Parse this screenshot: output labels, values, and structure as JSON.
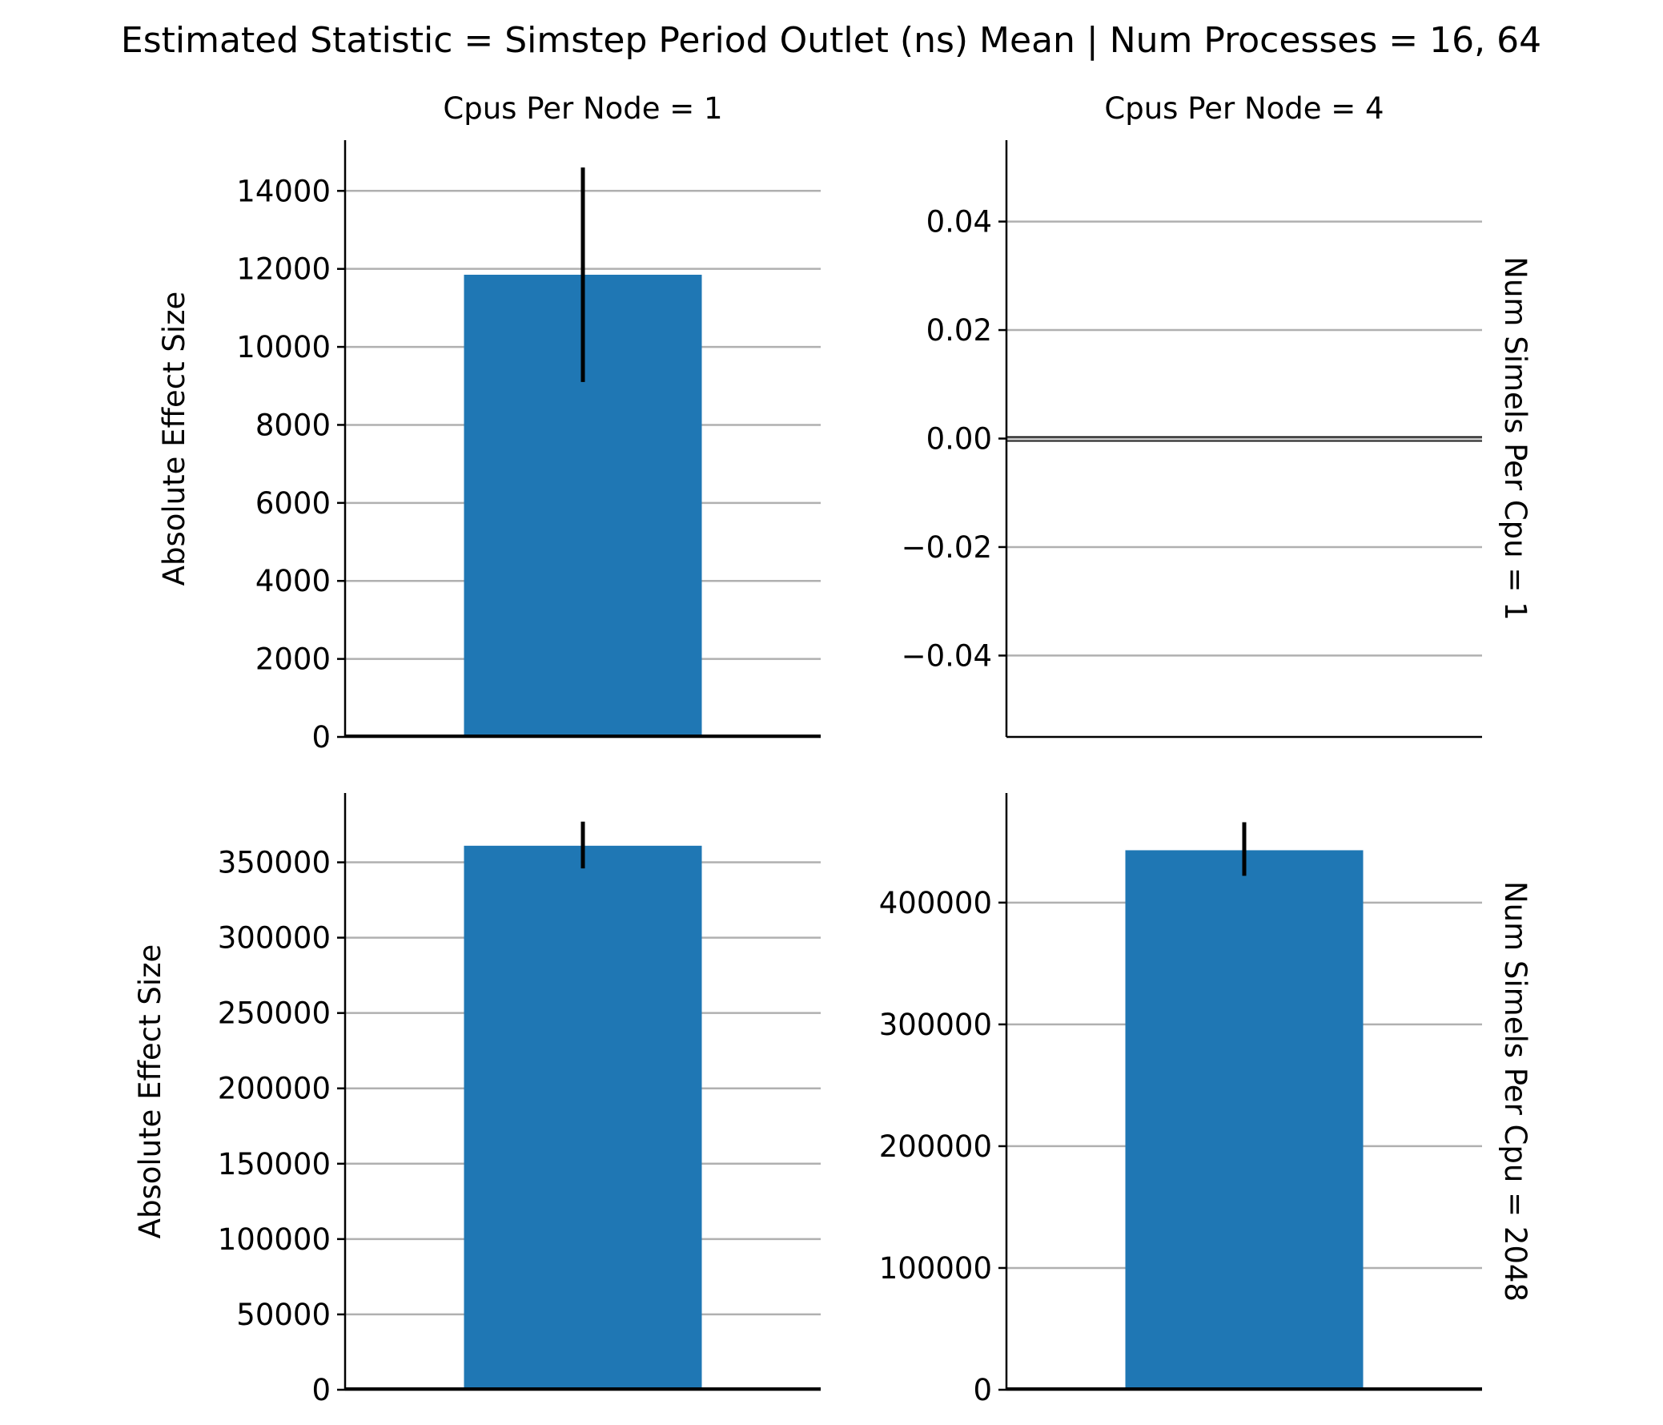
{
  "figure": {
    "suptitle": "Estimated Statistic = Simstep Period Outlet (ns) Mean | Num Processes = 16, 64",
    "col_titles": [
      "Cpus Per Node = 1",
      "Cpus Per Node = 4"
    ],
    "row_titles": [
      "Num Simels Per Cpu = 1",
      "Num Simels Per Cpu = 2048"
    ],
    "bar_color": "#1f77b4",
    "grid_color": "#b0b0b0",
    "errorbar_color": "#000000"
  },
  "chart_data": [
    {
      "type": "bar",
      "title": "Cpus Per Node = 1",
      "row_label": "",
      "ylabel": "Absolute Effect Size",
      "xlabel": "",
      "categories": [
        ""
      ],
      "values": [
        11850
      ],
      "error_low": [
        9100
      ],
      "error_high": [
        14600
      ],
      "ylim": [
        0,
        15300
      ],
      "yticks": [
        0,
        2000,
        4000,
        6000,
        8000,
        10000,
        12000,
        14000
      ],
      "ytick_labels": [
        "0",
        "2000",
        "4000",
        "6000",
        "8000",
        "10000",
        "12000",
        "14000"
      ],
      "grid": true
    },
    {
      "type": "bar",
      "title": "Cpus Per Node = 4",
      "row_label": "Num Simels Per Cpu = 1",
      "ylabel": "",
      "xlabel": "",
      "categories": [
        ""
      ],
      "values": [
        0
      ],
      "error_low": [
        0
      ],
      "error_high": [
        0
      ],
      "ylim": [
        -0.055,
        0.055
      ],
      "yticks": [
        -0.04,
        -0.02,
        0.0,
        0.02,
        0.04
      ],
      "ytick_labels": [
        "−0.04",
        "−0.02",
        "0.00",
        "0.02",
        "0.04"
      ],
      "grid": true
    },
    {
      "type": "bar",
      "title": "",
      "row_label": "",
      "ylabel": "Absolute Effect Size",
      "xlabel": "",
      "categories": [
        ""
      ],
      "values": [
        361000
      ],
      "error_low": [
        346000
      ],
      "error_high": [
        377000
      ],
      "ylim": [
        0,
        396000
      ],
      "yticks": [
        0,
        50000,
        100000,
        150000,
        200000,
        250000,
        300000,
        350000
      ],
      "ytick_labels": [
        "0",
        "50000",
        "100000",
        "150000",
        "200000",
        "250000",
        "300000",
        "350000"
      ],
      "grid": true
    },
    {
      "type": "bar",
      "title": "",
      "row_label": "Num Simels Per Cpu = 2048",
      "ylabel": "",
      "xlabel": "",
      "categories": [
        ""
      ],
      "values": [
        443000
      ],
      "error_low": [
        422000
      ],
      "error_high": [
        466000
      ],
      "ylim": [
        0,
        490000
      ],
      "yticks": [
        0,
        100000,
        200000,
        300000,
        400000
      ],
      "ytick_labels": [
        "0",
        "100000",
        "200000",
        "300000",
        "400000"
      ],
      "grid": true
    }
  ]
}
